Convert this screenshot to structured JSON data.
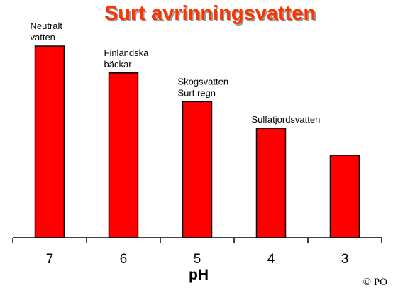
{
  "chart_data": {
    "type": "bar",
    "title": "Surt avrinningsvatten",
    "xlabel": "pH",
    "ylabel": "",
    "categories": [
      "7",
      "6",
      "5",
      "4",
      "3"
    ],
    "values": [
      100,
      86,
      71,
      57,
      43
    ],
    "ylim": [
      0,
      100
    ],
    "grid": false,
    "annotations": [
      {
        "category": "7",
        "lines": [
          "Neutralt",
          "vatten"
        ]
      },
      {
        "category": "6",
        "lines": [
          "Finländska",
          "bäckar"
        ]
      },
      {
        "category": "5",
        "lines": [
          "Skogsvatten",
          "Surt regn"
        ]
      },
      {
        "category": "4",
        "lines": [
          "Sulfatjordsvatten"
        ]
      }
    ]
  },
  "copyright": "© PÖ",
  "colors": {
    "bar_fill": "#ff0000",
    "title": "#ff3300"
  }
}
